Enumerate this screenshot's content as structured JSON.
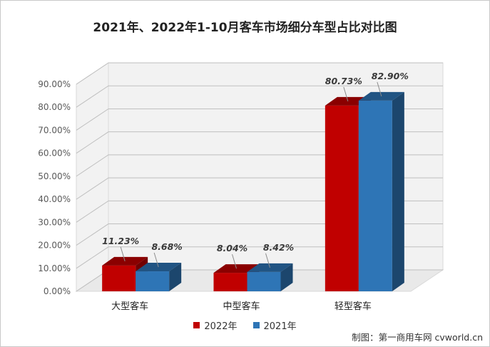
{
  "chart_data": {
    "type": "bar",
    "title": "2021年、2022年1-10月客车市场细分车型占比对比图",
    "categories": [
      "大型客车",
      "中型客车",
      "轻型客车"
    ],
    "series": [
      {
        "name": "2022年",
        "values": [
          11.23,
          8.04,
          80.73
        ],
        "labels": [
          "11.23%",
          "8.04%",
          "80.73%"
        ],
        "color": "#C00000"
      },
      {
        "name": "2021年",
        "values": [
          8.68,
          8.42,
          82.9
        ],
        "labels": [
          "8.68%",
          "8.42%",
          "82.90%"
        ],
        "color": "#2E75B6"
      }
    ],
    "yticks": [
      "0.00%",
      "10.00%",
      "20.00%",
      "30.00%",
      "40.00%",
      "50.00%",
      "60.00%",
      "70.00%",
      "80.00%",
      "90.00%"
    ],
    "ylim": [
      0,
      90
    ],
    "grid": true,
    "legend_position": "bottom"
  },
  "credit": "制图：第一商用车网 cvworld.cn"
}
